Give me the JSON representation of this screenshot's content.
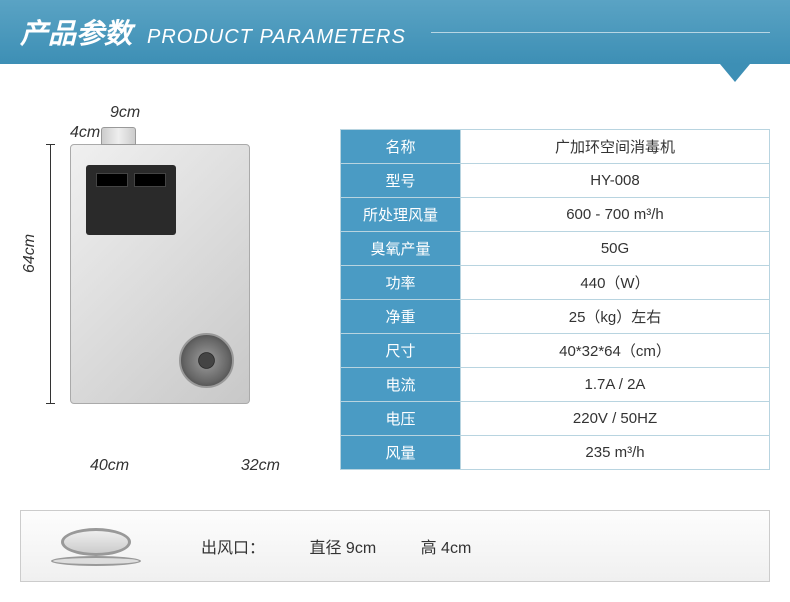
{
  "header": {
    "title_cn": "产品参数",
    "title_en": "PRODUCT PARAMETERS"
  },
  "dimensions": {
    "height": "64cm",
    "width": "40cm",
    "depth": "32cm",
    "pipe_diameter": "9cm",
    "pipe_height": "4cm"
  },
  "specs": [
    {
      "label": "名称",
      "value": "广加环空间消毒机"
    },
    {
      "label": "型号",
      "value": "HY-008"
    },
    {
      "label": "所处理风量",
      "value": "600 - 700 m³/h"
    },
    {
      "label": "臭氧产量",
      "value": "50G"
    },
    {
      "label": "功率",
      "value": "440（W）"
    },
    {
      "label": "净重",
      "value": "25（kg）左右"
    },
    {
      "label": "尺寸",
      "value": "40*32*64（cm）"
    },
    {
      "label": "电流",
      "value": "1.7A / 2A"
    },
    {
      "label": "电压",
      "value": "220V / 50HZ"
    },
    {
      "label": "风量",
      "value": "235 m³/h"
    }
  ],
  "outlet": {
    "label": "出风口：",
    "diameter": "直径 9cm",
    "height": "高 4cm"
  },
  "colors": {
    "header_bg": "#4a9bc4",
    "label_bg": "#4a9bc4",
    "border": "#b8d4e0"
  }
}
